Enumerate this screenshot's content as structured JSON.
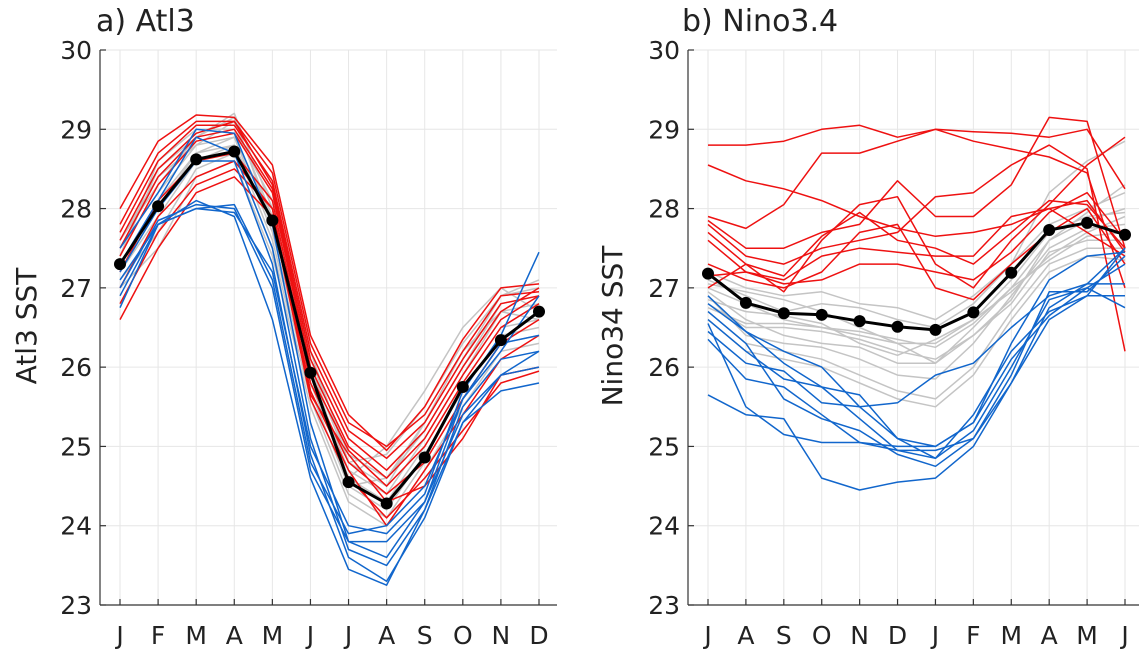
{
  "chart_data": [
    {
      "type": "line",
      "title": "a) Atl3",
      "ylabel": "Atl3 SST",
      "xlabel": "",
      "categories": [
        "J",
        "F",
        "M",
        "A",
        "M",
        "J",
        "J",
        "A",
        "S",
        "O",
        "N",
        "D"
      ],
      "ylim": [
        23,
        30
      ],
      "yticks": [
        23,
        24,
        25,
        26,
        27,
        28,
        29,
        30
      ],
      "grid": true,
      "colors": {
        "warm": "#ee1111",
        "cold": "#1166cc",
        "neutral": "#c4c4c4",
        "mean": "#000000"
      },
      "series": [
        {
          "group": "mean",
          "values": [
            27.3,
            28.03,
            28.62,
            28.72,
            27.85,
            25.93,
            24.55,
            24.28,
            24.86,
            25.75,
            26.34,
            26.7
          ]
        },
        {
          "group": "warm",
          "values": [
            28.0,
            28.85,
            29.18,
            29.15,
            28.55,
            26.4,
            25.4,
            24.95,
            25.5,
            26.35,
            27.0,
            27.05
          ]
        },
        {
          "group": "warm",
          "values": [
            27.8,
            28.7,
            29.1,
            29.1,
            28.45,
            26.3,
            25.3,
            25.0,
            25.4,
            26.2,
            26.9,
            26.95
          ]
        },
        {
          "group": "warm",
          "values": [
            27.7,
            28.6,
            29.05,
            29.05,
            28.35,
            26.2,
            25.2,
            24.85,
            25.3,
            26.1,
            26.8,
            26.9
          ]
        },
        {
          "group": "warm",
          "values": [
            27.6,
            28.5,
            28.95,
            29.1,
            28.3,
            26.1,
            25.1,
            24.7,
            25.2,
            26.0,
            26.7,
            27.0
          ]
        },
        {
          "group": "warm",
          "values": [
            27.5,
            28.4,
            28.9,
            29.0,
            28.25,
            26.0,
            25.0,
            24.6,
            25.1,
            25.9,
            26.6,
            26.9
          ]
        },
        {
          "group": "warm",
          "values": [
            27.4,
            28.3,
            28.85,
            28.95,
            28.2,
            25.9,
            24.95,
            24.5,
            25.0,
            25.8,
            26.5,
            26.8
          ]
        },
        {
          "group": "warm",
          "values": [
            27.2,
            28.1,
            28.6,
            28.7,
            28.1,
            25.8,
            24.8,
            24.4,
            24.8,
            25.6,
            26.3,
            26.6
          ]
        },
        {
          "group": "warm",
          "values": [
            27.0,
            27.9,
            28.4,
            28.6,
            28.0,
            25.7,
            24.7,
            24.0,
            24.7,
            25.4,
            26.1,
            26.4
          ]
        },
        {
          "group": "warm",
          "values": [
            26.6,
            27.5,
            28.2,
            28.4,
            27.9,
            25.6,
            24.6,
            24.1,
            24.6,
            25.2,
            25.8,
            25.95
          ]
        },
        {
          "group": "warm",
          "values": [
            26.8,
            27.7,
            28.3,
            28.5,
            28.0,
            25.65,
            24.9,
            24.3,
            24.5,
            25.1,
            25.9,
            26.0
          ]
        },
        {
          "group": "cold",
          "values": [
            27.5,
            28.2,
            29.0,
            28.95,
            27.8,
            25.3,
            23.8,
            23.6,
            24.3,
            25.6,
            26.3,
            26.4
          ]
        },
        {
          "group": "cold",
          "values": [
            27.3,
            28.1,
            28.9,
            28.7,
            27.5,
            25.1,
            23.7,
            23.5,
            24.2,
            25.5,
            26.1,
            26.2
          ]
        },
        {
          "group": "cold",
          "values": [
            27.2,
            28.0,
            28.6,
            28.6,
            27.3,
            24.9,
            23.6,
            23.3,
            24.1,
            25.3,
            25.9,
            26.0
          ]
        },
        {
          "group": "cold",
          "values": [
            27.1,
            27.8,
            28.1,
            27.9,
            26.6,
            24.6,
            23.45,
            23.25,
            24.2,
            25.3,
            25.7,
            25.8
          ]
        },
        {
          "group": "cold",
          "values": [
            27.0,
            27.85,
            28.05,
            28.0,
            27.0,
            24.7,
            23.8,
            23.8,
            24.3,
            25.4,
            25.9,
            26.2
          ]
        },
        {
          "group": "cold",
          "values": [
            26.9,
            27.8,
            28.0,
            28.05,
            27.1,
            24.8,
            23.9,
            24.0,
            24.5,
            25.6,
            26.2,
            26.9
          ]
        },
        {
          "group": "cold",
          "values": [
            26.75,
            27.8,
            28.0,
            27.95,
            27.2,
            25.0,
            24.0,
            23.9,
            24.4,
            25.7,
            26.4,
            27.45
          ]
        },
        {
          "group": "neutral",
          "values": [
            27.6,
            28.3,
            28.9,
            29.2,
            28.0,
            26.1,
            24.9,
            24.6,
            25.2,
            26.0,
            26.8,
            26.9
          ]
        },
        {
          "group": "neutral",
          "values": [
            27.5,
            28.2,
            28.8,
            29.1,
            27.9,
            26.0,
            24.8,
            24.5,
            25.3,
            26.1,
            26.9,
            27.1
          ]
        },
        {
          "group": "neutral",
          "values": [
            27.4,
            28.5,
            28.9,
            29.15,
            27.8,
            25.9,
            24.7,
            24.4,
            25.1,
            25.9,
            26.7,
            26.8
          ]
        },
        {
          "group": "neutral",
          "values": [
            27.3,
            28.1,
            28.7,
            28.9,
            27.7,
            25.8,
            24.6,
            24.3,
            25.0,
            25.8,
            26.5,
            26.6
          ]
        },
        {
          "group": "neutral",
          "values": [
            27.2,
            27.9,
            28.6,
            28.8,
            27.6,
            25.7,
            24.5,
            24.2,
            24.9,
            25.7,
            26.4,
            26.5
          ]
        },
        {
          "group": "neutral",
          "values": [
            27.1,
            27.7,
            28.5,
            28.7,
            27.5,
            25.6,
            24.4,
            24.1,
            24.8,
            25.6,
            26.3,
            26.4
          ]
        },
        {
          "group": "neutral",
          "values": [
            27.0,
            27.5,
            28.4,
            28.6,
            27.4,
            25.5,
            24.3,
            24.0,
            24.7,
            25.5,
            26.2,
            26.3
          ]
        },
        {
          "group": "neutral",
          "values": [
            27.6,
            28.4,
            28.8,
            28.9,
            27.9,
            26.0,
            24.6,
            25.0,
            25.7,
            26.5,
            27.0,
            26.7
          ]
        },
        {
          "group": "neutral",
          "values": [
            27.4,
            28.6,
            29.0,
            29.0,
            28.1,
            26.2,
            24.8,
            24.9,
            25.5,
            26.3,
            26.9,
            27.0
          ]
        },
        {
          "group": "neutral",
          "values": [
            27.2,
            28.0,
            28.7,
            28.8,
            27.8,
            25.9,
            24.5,
            24.6,
            25.3,
            26.2,
            26.7,
            26.6
          ]
        }
      ]
    },
    {
      "type": "line",
      "title": "b) Nino3.4",
      "ylabel": "Nino34 SST",
      "xlabel": "",
      "categories": [
        "J",
        "A",
        "S",
        "O",
        "N",
        "D",
        "J",
        "F",
        "M",
        "A",
        "M",
        "J"
      ],
      "ylim": [
        23,
        30
      ],
      "yticks": [
        23,
        24,
        25,
        26,
        27,
        28,
        29,
        30
      ],
      "grid": true,
      "colors": {
        "warm": "#ee1111",
        "cold": "#1166cc",
        "neutral": "#c4c4c4",
        "mean": "#000000"
      },
      "series": [
        {
          "group": "mean",
          "values": [
            27.18,
            26.81,
            26.68,
            26.66,
            26.58,
            26.51,
            26.47,
            26.69,
            27.19,
            27.73,
            27.82,
            27.67
          ]
        },
        {
          "group": "warm",
          "values": [
            28.8,
            28.8,
            28.85,
            29.0,
            29.05,
            28.9,
            29.0,
            28.97,
            28.95,
            28.9,
            29.0,
            28.25
          ]
        },
        {
          "group": "warm",
          "values": [
            28.55,
            28.35,
            28.25,
            28.1,
            27.9,
            27.75,
            27.65,
            27.7,
            27.8,
            28.0,
            28.1,
            27.45
          ]
        },
        {
          "group": "warm",
          "values": [
            27.9,
            27.75,
            28.05,
            28.7,
            28.7,
            28.85,
            29.0,
            28.85,
            28.75,
            28.65,
            28.45,
            27.0
          ]
        },
        {
          "group": "warm",
          "values": [
            27.85,
            27.5,
            27.5,
            27.7,
            27.8,
            28.35,
            27.9,
            27.9,
            28.3,
            29.15,
            29.1,
            27.5
          ]
        },
        {
          "group": "warm",
          "values": [
            27.8,
            27.4,
            27.3,
            27.5,
            27.6,
            27.7,
            28.15,
            28.2,
            28.55,
            28.8,
            28.5,
            26.2
          ]
        },
        {
          "group": "warm",
          "values": [
            27.7,
            27.3,
            27.15,
            27.65,
            27.95,
            27.6,
            27.5,
            27.3,
            27.7,
            28.1,
            28.05,
            27.5
          ]
        },
        {
          "group": "warm",
          "values": [
            27.6,
            27.2,
            27.1,
            27.4,
            27.5,
            27.45,
            27.4,
            27.4,
            27.9,
            28.0,
            27.7,
            27.4
          ]
        },
        {
          "group": "warm",
          "values": [
            27.3,
            27.1,
            27.0,
            27.2,
            27.7,
            27.8,
            27.0,
            26.85,
            27.3,
            27.7,
            28.0,
            27.3
          ]
        },
        {
          "group": "warm",
          "values": [
            27.15,
            27.2,
            27.05,
            27.1,
            27.3,
            27.3,
            27.2,
            27.1,
            27.45,
            27.95,
            28.2,
            27.6
          ]
        },
        {
          "group": "warm",
          "values": [
            27.0,
            27.3,
            26.95,
            27.6,
            28.05,
            28.15,
            27.3,
            27.0,
            27.6,
            28.05,
            28.55,
            28.9
          ]
        },
        {
          "group": "cold",
          "values": [
            26.45,
            26.05,
            25.95,
            25.55,
            25.5,
            25.55,
            25.9,
            26.05,
            26.5,
            26.9,
            27.05,
            27.05
          ]
        },
        {
          "group": "cold",
          "values": [
            26.35,
            25.85,
            25.75,
            25.4,
            25.05,
            25.0,
            25.0,
            25.3,
            26.1,
            26.65,
            27.0,
            26.75
          ]
        },
        {
          "group": "cold",
          "values": [
            26.6,
            26.2,
            25.85,
            25.75,
            25.65,
            25.1,
            24.85,
            25.2,
            26.0,
            26.85,
            27.0,
            27.3
          ]
        },
        {
          "group": "cold",
          "values": [
            26.7,
            26.3,
            25.6,
            25.35,
            25.2,
            24.9,
            24.75,
            25.1,
            25.9,
            26.95,
            26.95,
            27.4
          ]
        },
        {
          "group": "cold",
          "values": [
            26.8,
            26.45,
            26.05,
            25.75,
            25.35,
            24.95,
            24.85,
            25.4,
            26.2,
            26.7,
            26.9,
            27.5
          ]
        },
        {
          "group": "cold",
          "values": [
            26.9,
            26.45,
            26.2,
            26.0,
            25.5,
            25.1,
            25.0,
            25.3,
            26.3,
            27.1,
            27.4,
            27.45
          ]
        },
        {
          "group": "cold",
          "values": [
            25.65,
            25.4,
            25.35,
            24.6,
            24.45,
            24.55,
            24.6,
            25.0,
            25.8,
            26.6,
            26.9,
            26.9
          ]
        },
        {
          "group": "cold",
          "values": [
            26.55,
            25.5,
            25.15,
            25.05,
            25.05,
            24.95,
            24.95,
            25.1,
            25.8,
            26.75,
            27.05,
            27.5
          ]
        },
        {
          "group": "neutral",
          "values": [
            27.2,
            27.0,
            26.9,
            26.95,
            26.8,
            26.75,
            26.6,
            26.9,
            27.3,
            28.2,
            28.6,
            28.85
          ]
        },
        {
          "group": "neutral",
          "values": [
            27.1,
            26.9,
            26.7,
            26.8,
            26.75,
            26.6,
            26.5,
            26.8,
            27.3,
            27.8,
            28.0,
            28.2
          ]
        },
        {
          "group": "neutral",
          "values": [
            27.0,
            26.8,
            26.6,
            26.5,
            26.4,
            26.3,
            26.3,
            26.6,
            27.1,
            27.7,
            27.9,
            27.95
          ]
        },
        {
          "group": "neutral",
          "values": [
            26.95,
            26.6,
            26.4,
            26.3,
            26.25,
            26.05,
            26.05,
            26.5,
            27.0,
            27.6,
            27.85,
            28.0
          ]
        },
        {
          "group": "neutral",
          "values": [
            26.9,
            26.4,
            26.3,
            26.25,
            26.1,
            25.9,
            25.85,
            26.3,
            26.9,
            27.5,
            27.75,
            27.8
          ]
        },
        {
          "group": "neutral",
          "values": [
            26.8,
            26.5,
            26.5,
            26.45,
            26.35,
            26.2,
            26.1,
            26.4,
            26.8,
            27.45,
            27.6,
            27.6
          ]
        },
        {
          "group": "neutral",
          "values": [
            26.7,
            26.3,
            26.2,
            26.1,
            25.9,
            25.7,
            25.6,
            26.0,
            26.7,
            27.3,
            27.5,
            27.5
          ]
        },
        {
          "group": "neutral",
          "values": [
            26.6,
            26.2,
            26.1,
            26.0,
            25.8,
            25.6,
            25.5,
            25.9,
            26.6,
            27.2,
            27.4,
            27.35
          ]
        },
        {
          "group": "neutral",
          "values": [
            27.05,
            26.95,
            26.85,
            26.7,
            26.5,
            26.3,
            26.05,
            26.4,
            26.85,
            27.6,
            27.95,
            28.3
          ]
        },
        {
          "group": "neutral",
          "values": [
            26.85,
            26.7,
            26.65,
            26.55,
            26.3,
            26.15,
            26.35,
            26.6,
            26.95,
            27.4,
            27.7,
            27.9
          ]
        },
        {
          "group": "neutral",
          "values": [
            26.75,
            26.55,
            26.55,
            26.5,
            26.45,
            26.35,
            26.25,
            26.55,
            27.0,
            27.35,
            27.65,
            27.7
          ]
        }
      ]
    }
  ]
}
